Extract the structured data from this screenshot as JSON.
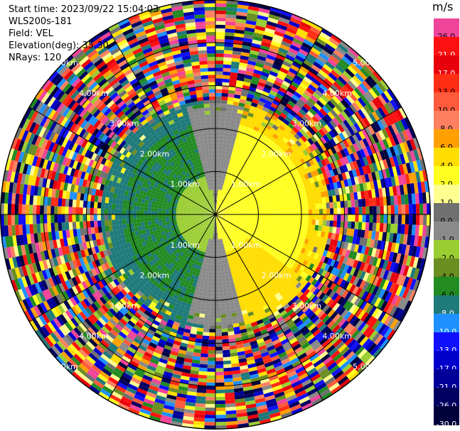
{
  "header": {
    "start_time": "Start time: 2023/09/22 15:04:03",
    "instrument": "WLS200s-181",
    "field": "Field: VEL",
    "elevation": "Elevation(deg): 35.30",
    "nrays": "NRays: 120"
  },
  "ppi": {
    "range_labels": [
      "1.00km",
      "2.00km",
      "3.00km",
      "4.00km",
      "5.00km"
    ],
    "ring_count": 5,
    "max_range_km": 5.0,
    "spoke_count": 12
  },
  "colorbar": {
    "unit": "m/s",
    "levels": [
      {
        "label": "26.0",
        "color": "#f0449a"
      },
      {
        "label": "21.0",
        "color": "#ff1010"
      },
      {
        "label": "17.0",
        "color": "#e8000a"
      },
      {
        "label": "13.0",
        "color": "#ff2e14"
      },
      {
        "label": "10.0",
        "color": "#ff5a3c"
      },
      {
        "label": "8.0",
        "color": "#ff8060"
      },
      {
        "label": "6.0",
        "color": "#ffa000"
      },
      {
        "label": "4.0",
        "color": "#ffdd00"
      },
      {
        "label": "2.0",
        "color": "#ffff20"
      },
      {
        "label": "1.0",
        "color": "#ffff90"
      },
      {
        "label": "0.0",
        "color": "#707070"
      },
      {
        "label": "-1.0",
        "color": "#8a8a8a"
      },
      {
        "label": "-2.0",
        "color": "#9acd32"
      },
      {
        "label": "-4.0",
        "color": "#6b8e23"
      },
      {
        "label": "-6.0",
        "color": "#228b22"
      },
      {
        "label": "-8.0",
        "color": "#1f7a7a"
      },
      {
        "label": "-10.0",
        "color": "#1e90ff"
      },
      {
        "label": "-13.0",
        "color": "#1010ff"
      },
      {
        "label": "-17.0",
        "color": "#0000cd"
      },
      {
        "label": "-21.0",
        "color": "#000099"
      },
      {
        "label": "-26.0",
        "color": "#000060"
      },
      {
        "label": "-30.0",
        "color": "#00003a"
      }
    ]
  }
}
